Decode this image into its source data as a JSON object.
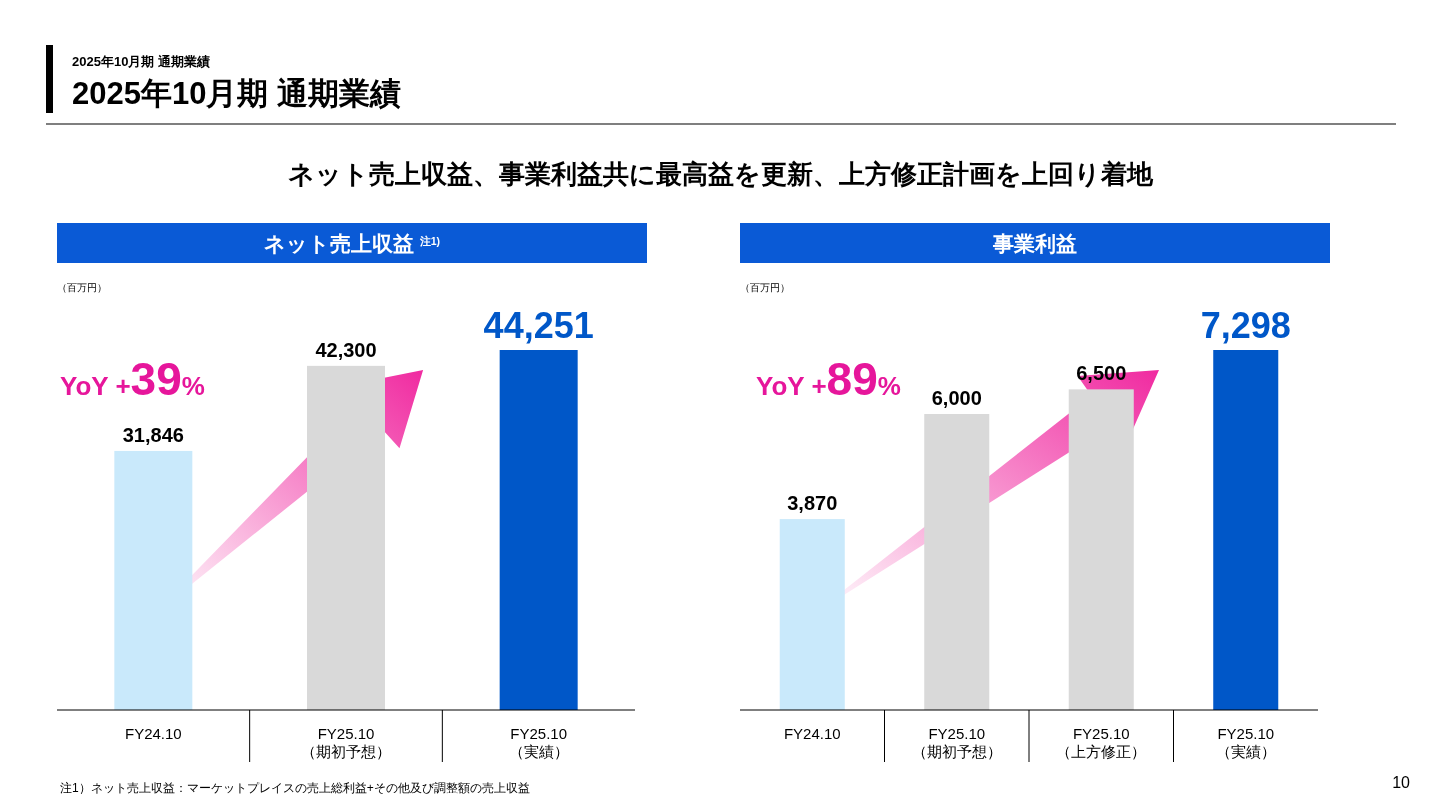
{
  "chart_data": [
    {
      "type": "other",
      "title": "2025年10月期 通期業績",
      "subtitle": "ネット売上収益、事業利益共に最高益を更新、上方修正計画を上回り着地",
      "annotations": [
        "2025年10月期 通期業績",
        "注1）ネット売上収益：マーケットプレイスの売上総利益+その他及び調整額の売上収益",
        "10"
      ]
    },
    {
      "type": "bar",
      "title": "ネット売上収益 $^{注1)}$",
      "categories": [
        "FY24.10",
        "FY25.10\n（期初予想）",
        "FY25.10\n（実績）"
      ],
      "values": [
        31846,
        42300,
        44251
      ],
      "colors": [
        "#c9e9fb",
        "#d9d9d9",
        "#0057c8"
      ],
      "value_labels": [
        "31,846",
        "42,300",
        "44,251"
      ],
      "annotations": [
        "（百万円）",
        "YoY +39%"
      ]
    },
    {
      "type": "bar",
      "title": "事業利益",
      "categories": [
        "FY24.10",
        "FY25.10\n（期初予想）",
        "FY25.10\n（上方修正）",
        "FY25.10\n（実績）"
      ],
      "values": [
        3870,
        6000,
        6500,
        7298
      ],
      "colors": [
        "#c9e9fb",
        "#d9d9d9",
        "#d9d9d9",
        "#0057c8"
      ],
      "value_labels": [
        "3,870",
        "6,000",
        "6,500",
        "7,298"
      ],
      "annotations": [
        "（百万円）",
        "YoY +89%"
      ]
    }
  ]
}
